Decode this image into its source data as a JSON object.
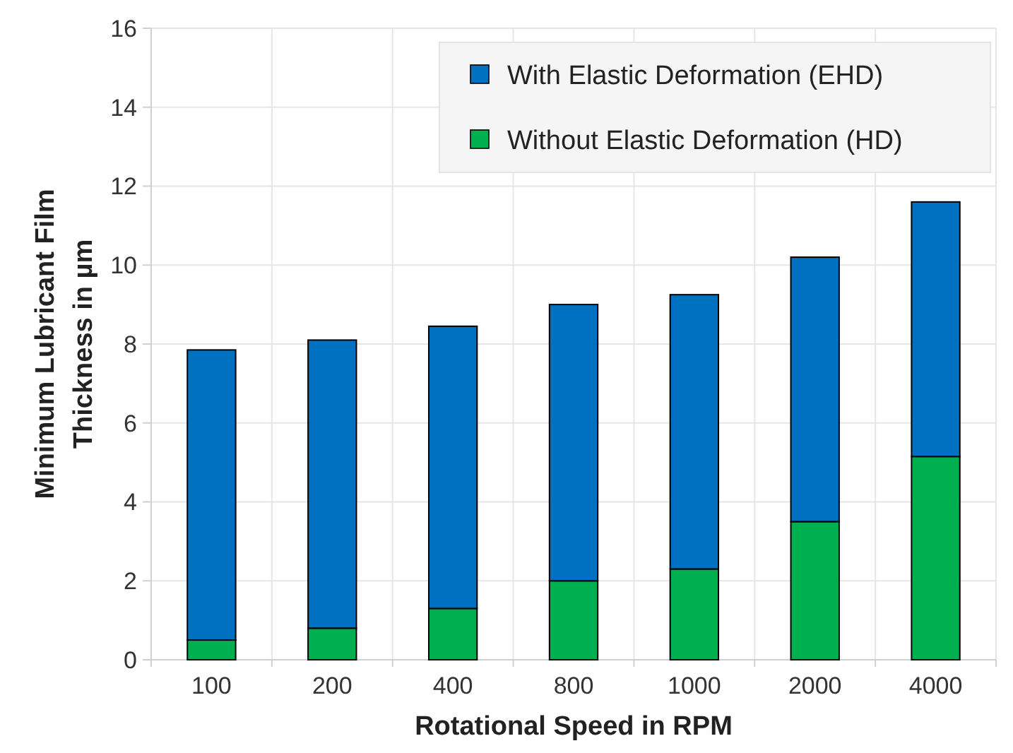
{
  "chart_data": {
    "type": "bar",
    "stacked": true,
    "xlabel": "Rotational Speed in RPM",
    "ylabel": "Minimum Lubricant Film Thickness in µm",
    "categories": [
      "100",
      "200",
      "400",
      "800",
      "1000",
      "2000",
      "4000"
    ],
    "series": [
      {
        "name": "Without Elastic Deformation (HD)",
        "color": "#00b050",
        "values": [
          0.5,
          0.8,
          1.3,
          2.0,
          2.3,
          3.5,
          5.15
        ]
      },
      {
        "name": "With Elastic Deformation (EHD)",
        "color": "#0070c0",
        "values": [
          7.35,
          7.3,
          7.15,
          7.0,
          6.95,
          6.7,
          6.45
        ]
      }
    ],
    "ylim": [
      0,
      16
    ],
    "yticks": [
      0,
      2,
      4,
      6,
      8,
      10,
      12,
      14,
      16
    ],
    "grid": true,
    "legend": "top right"
  }
}
